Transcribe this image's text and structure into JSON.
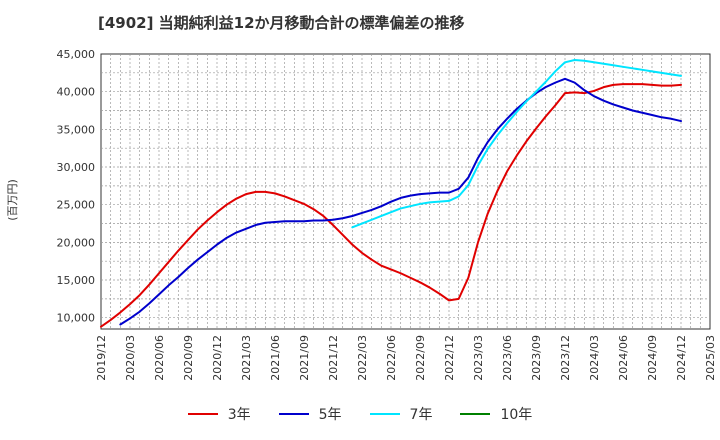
{
  "chart_data": {
    "type": "line",
    "title": "[4902]  当期純利益12か月移動合計の標準偏差の推移",
    "ylabel": "(百万円)",
    "ylim": [
      8500,
      45000
    ],
    "yticks": [
      10000,
      15000,
      20000,
      25000,
      30000,
      35000,
      40000,
      45000
    ],
    "ytick_labels": [
      "10,000",
      "15,000",
      "20,000",
      "25,000",
      "30,000",
      "35,000",
      "40,000",
      "45,000"
    ],
    "xlim": [
      "2019/12",
      "2025/03"
    ],
    "xtick_labels": [
      "2019/12",
      "2020/03",
      "2020/06",
      "2020/09",
      "2020/12",
      "2021/03",
      "2021/06",
      "2021/09",
      "2021/12",
      "2022/03",
      "2022/06",
      "2022/09",
      "2022/12",
      "2023/03",
      "2023/06",
      "2023/09",
      "2023/12",
      "2024/03",
      "2024/06",
      "2024/09",
      "2024/12",
      "2025/03"
    ],
    "grid": true,
    "legend_position": "bottom",
    "series": [
      {
        "name": "3年",
        "color": "#e00000",
        "points": [
          [
            "2019/12",
            8800
          ],
          [
            "2020/01",
            9700
          ],
          [
            "2020/02",
            10700
          ],
          [
            "2020/03",
            11800
          ],
          [
            "2020/04",
            13000
          ],
          [
            "2020/05",
            14400
          ],
          [
            "2020/06",
            15900
          ],
          [
            "2020/07",
            17400
          ],
          [
            "2020/08",
            18900
          ],
          [
            "2020/09",
            20300
          ],
          [
            "2020/10",
            21700
          ],
          [
            "2020/11",
            22900
          ],
          [
            "2020/12",
            24000
          ],
          [
            "2021/01",
            25000
          ],
          [
            "2021/02",
            25800
          ],
          [
            "2021/03",
            26400
          ],
          [
            "2021/04",
            26700
          ],
          [
            "2021/05",
            26700
          ],
          [
            "2021/06",
            26500
          ],
          [
            "2021/07",
            26100
          ],
          [
            "2021/08",
            25600
          ],
          [
            "2021/09",
            25100
          ],
          [
            "2021/10",
            24400
          ],
          [
            "2021/11",
            23500
          ],
          [
            "2021/12",
            22300
          ],
          [
            "2022/01",
            21000
          ],
          [
            "2022/02",
            19700
          ],
          [
            "2022/03",
            18600
          ],
          [
            "2022/04",
            17700
          ],
          [
            "2022/05",
            16900
          ],
          [
            "2022/06",
            16400
          ],
          [
            "2022/07",
            15900
          ],
          [
            "2022/08",
            15300
          ],
          [
            "2022/09",
            14700
          ],
          [
            "2022/10",
            14000
          ],
          [
            "2022/11",
            13200
          ],
          [
            "2022/12",
            12300
          ],
          [
            "2023/01",
            12500
          ],
          [
            "2023/02",
            15300
          ],
          [
            "2023/03",
            20000
          ],
          [
            "2023/04",
            23800
          ],
          [
            "2023/05",
            26800
          ],
          [
            "2023/06",
            29400
          ],
          [
            "2023/07",
            31500
          ],
          [
            "2023/08",
            33400
          ],
          [
            "2023/09",
            35100
          ],
          [
            "2023/10",
            36700
          ],
          [
            "2023/11",
            38200
          ],
          [
            "2023/12",
            39800
          ],
          [
            "2024/01",
            39900
          ],
          [
            "2024/02",
            39800
          ],
          [
            "2024/03",
            40100
          ],
          [
            "2024/04",
            40600
          ],
          [
            "2024/05",
            40900
          ],
          [
            "2024/06",
            41000
          ],
          [
            "2024/07",
            41000
          ],
          [
            "2024/08",
            41000
          ],
          [
            "2024/09",
            40900
          ],
          [
            "2024/10",
            40800
          ],
          [
            "2024/11",
            40800
          ],
          [
            "2024/12",
            40900
          ]
        ]
      },
      {
        "name": "5年",
        "color": "#0000cc",
        "points": [
          [
            "2020/02",
            9100
          ],
          [
            "2020/03",
            9900
          ],
          [
            "2020/04",
            10800
          ],
          [
            "2020/05",
            11900
          ],
          [
            "2020/06",
            13100
          ],
          [
            "2020/07",
            14300
          ],
          [
            "2020/08",
            15400
          ],
          [
            "2020/09",
            16600
          ],
          [
            "2020/10",
            17700
          ],
          [
            "2020/11",
            18700
          ],
          [
            "2020/12",
            19700
          ],
          [
            "2021/01",
            20600
          ],
          [
            "2021/02",
            21300
          ],
          [
            "2021/03",
            21800
          ],
          [
            "2021/04",
            22300
          ],
          [
            "2021/05",
            22600
          ],
          [
            "2021/06",
            22700
          ],
          [
            "2021/07",
            22800
          ],
          [
            "2021/08",
            22800
          ],
          [
            "2021/09",
            22800
          ],
          [
            "2021/10",
            22900
          ],
          [
            "2021/11",
            22900
          ],
          [
            "2021/12",
            23000
          ],
          [
            "2022/01",
            23200
          ],
          [
            "2022/02",
            23500
          ],
          [
            "2022/03",
            23900
          ],
          [
            "2022/04",
            24300
          ],
          [
            "2022/05",
            24800
          ],
          [
            "2022/06",
            25400
          ],
          [
            "2022/07",
            25900
          ],
          [
            "2022/08",
            26200
          ],
          [
            "2022/09",
            26400
          ],
          [
            "2022/10",
            26500
          ],
          [
            "2022/11",
            26600
          ],
          [
            "2022/12",
            26600
          ],
          [
            "2023/01",
            27100
          ],
          [
            "2023/02",
            28600
          ],
          [
            "2023/03",
            31200
          ],
          [
            "2023/04",
            33300
          ],
          [
            "2023/05",
            35000
          ],
          [
            "2023/06",
            36400
          ],
          [
            "2023/07",
            37700
          ],
          [
            "2023/08",
            38800
          ],
          [
            "2023/09",
            39800
          ],
          [
            "2023/10",
            40600
          ],
          [
            "2023/11",
            41200
          ],
          [
            "2023/12",
            41700
          ],
          [
            "2024/01",
            41200
          ],
          [
            "2024/02",
            40200
          ],
          [
            "2024/03",
            39400
          ],
          [
            "2024/04",
            38800
          ],
          [
            "2024/05",
            38300
          ],
          [
            "2024/06",
            37900
          ],
          [
            "2024/07",
            37500
          ],
          [
            "2024/08",
            37200
          ],
          [
            "2024/09",
            36900
          ],
          [
            "2024/10",
            36600
          ],
          [
            "2024/11",
            36400
          ],
          [
            "2024/12",
            36100
          ]
        ]
      },
      {
        "name": "7年",
        "color": "#00e5ff",
        "points": [
          [
            "2022/02",
            22000
          ],
          [
            "2022/03",
            22500
          ],
          [
            "2022/04",
            23000
          ],
          [
            "2022/05",
            23500
          ],
          [
            "2022/06",
            24000
          ],
          [
            "2022/07",
            24500
          ],
          [
            "2022/08",
            24800
          ],
          [
            "2022/09",
            25100
          ],
          [
            "2022/10",
            25300
          ],
          [
            "2022/11",
            25400
          ],
          [
            "2022/12",
            25500
          ],
          [
            "2023/01",
            26100
          ],
          [
            "2023/02",
            27600
          ],
          [
            "2023/03",
            30200
          ],
          [
            "2023/04",
            32400
          ],
          [
            "2023/05",
            34200
          ],
          [
            "2023/06",
            35800
          ],
          [
            "2023/07",
            37300
          ],
          [
            "2023/08",
            38700
          ],
          [
            "2023/09",
            40000
          ],
          [
            "2023/10",
            41300
          ],
          [
            "2023/11",
            42700
          ],
          [
            "2023/12",
            43900
          ],
          [
            "2024/01",
            44200
          ],
          [
            "2024/02",
            44100
          ],
          [
            "2024/03",
            43900
          ],
          [
            "2024/04",
            43700
          ],
          [
            "2024/05",
            43500
          ],
          [
            "2024/06",
            43300
          ],
          [
            "2024/07",
            43100
          ],
          [
            "2024/08",
            42900
          ],
          [
            "2024/09",
            42700
          ],
          [
            "2024/10",
            42500
          ],
          [
            "2024/11",
            42300
          ],
          [
            "2024/12",
            42100
          ]
        ]
      },
      {
        "name": "10年",
        "color": "#008000",
        "points": []
      }
    ]
  }
}
